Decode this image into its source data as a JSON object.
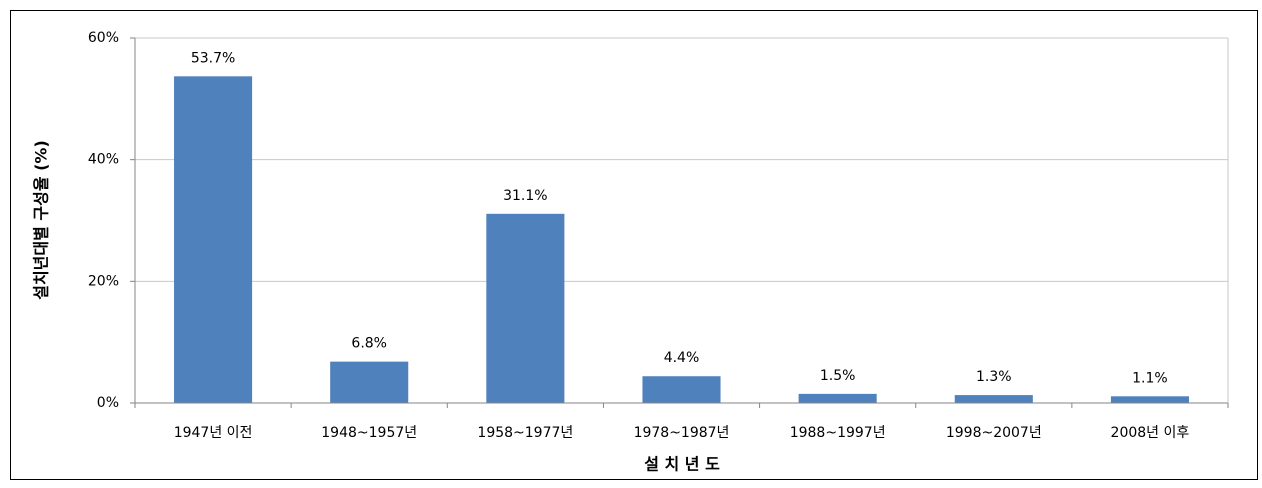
{
  "chart_data": {
    "type": "bar",
    "x_label": "설 치 년 도",
    "y_label": "설치년대별 구성율 (%)",
    "categories": [
      "1947년 이전",
      "1948~1957년",
      "1958~1977년",
      "1978~1987년",
      "1988~1997년",
      "1998~2007년",
      "2008년 이후"
    ],
    "values": [
      53.7,
      6.8,
      31.1,
      4.4,
      1.5,
      1.3,
      1.1
    ],
    "value_labels": [
      "53.7%",
      "6.8%",
      "31.1%",
      "4.4%",
      "1.5%",
      "1.3%",
      "1.1%"
    ],
    "color": "#4f81bd",
    "ylim": [
      0,
      60
    ],
    "yticks": [
      {
        "value": 0,
        "label": "0%"
      },
      {
        "value": 20,
        "label": "20%"
      },
      {
        "value": 40,
        "label": "40%"
      },
      {
        "value": 60,
        "label": "60%"
      }
    ],
    "grid": true
  }
}
